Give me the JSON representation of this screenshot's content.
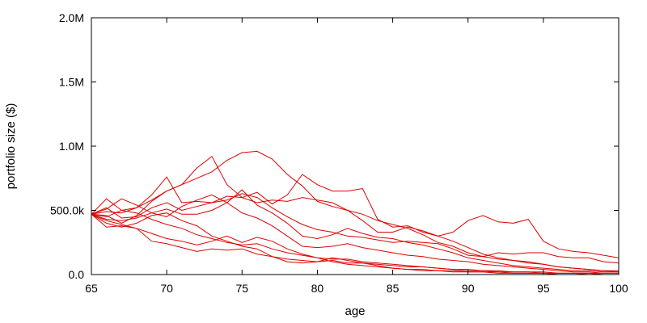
{
  "chart_data": {
    "type": "line",
    "title": "",
    "xlabel": "age",
    "ylabel": "portfolio size ($)",
    "xlim": [
      65,
      100
    ],
    "ylim": [
      0,
      2000000
    ],
    "x_ticks": [
      65,
      70,
      75,
      80,
      85,
      90,
      95,
      100
    ],
    "x_tick_labels": [
      "65",
      "70",
      "75",
      "80",
      "85",
      "90",
      "95",
      "100"
    ],
    "y_ticks": [
      0,
      500000,
      1000000,
      1500000,
      2000000
    ],
    "y_tick_labels": [
      "0.0",
      "500.0k",
      "1.0M",
      "1.5M",
      "2.0M"
    ],
    "grid": false,
    "line_color": "#e00000",
    "series": [
      {
        "x": [
          65,
          66,
          67,
          68,
          69,
          70,
          71,
          72,
          73,
          74,
          75,
          76,
          77,
          78,
          79,
          80,
          81,
          82,
          83,
          84,
          85,
          86,
          87,
          88,
          89,
          90,
          91,
          92,
          93,
          94,
          95,
          96,
          97,
          98,
          99,
          100
        ],
        "values": [
          470000,
          590000,
          500000,
          520000,
          580000,
          650000,
          700000,
          830000,
          920000,
          700000,
          600000,
          640000,
          550000,
          620000,
          780000,
          700000,
          650000,
          650000,
          670000,
          430000,
          370000,
          380000,
          330000,
          300000,
          330000,
          420000,
          460000,
          410000,
          400000,
          430000,
          260000,
          200000,
          180000,
          170000,
          150000,
          130000
        ]
      },
      {
        "x": [
          65,
          66,
          67,
          68,
          69,
          70,
          71,
          72,
          73,
          74,
          75,
          76,
          77,
          78,
          79,
          80,
          81,
          82,
          83,
          84,
          85,
          86,
          87,
          88,
          89,
          90,
          91,
          92,
          93,
          94,
          95,
          96,
          97,
          98,
          99,
          100
        ],
        "values": [
          470000,
          460000,
          400000,
          460000,
          570000,
          650000,
          700000,
          750000,
          800000,
          890000,
          950000,
          960000,
          900000,
          780000,
          690000,
          570000,
          530000,
          500000,
          420000,
          330000,
          330000,
          370000,
          340000,
          300000,
          260000,
          210000,
          160000,
          130000,
          110000,
          90000,
          80000,
          60000,
          50000,
          40000,
          30000,
          30000
        ]
      },
      {
        "x": [
          65,
          66,
          67,
          68,
          69,
          70,
          71,
          72,
          73,
          74,
          75,
          76,
          77,
          78,
          79,
          80,
          81,
          82,
          83,
          84,
          85,
          86,
          87,
          88,
          89,
          90,
          91,
          92,
          93,
          94,
          95,
          96,
          97,
          98,
          99,
          100
        ],
        "values": [
          470000,
          490000,
          480000,
          520000,
          620000,
          760000,
          560000,
          570000,
          560000,
          580000,
          630000,
          600000,
          520000,
          450000,
          390000,
          350000,
          330000,
          300000,
          290000,
          270000,
          250000,
          260000,
          250000,
          240000,
          200000,
          150000,
          140000,
          170000,
          160000,
          170000,
          170000,
          140000,
          130000,
          130000,
          100000,
          90000
        ]
      },
      {
        "x": [
          65,
          66,
          67,
          68,
          69,
          70,
          71,
          72,
          73,
          74,
          75,
          76,
          77,
          78,
          79,
          80,
          81,
          82,
          83,
          84,
          85,
          86,
          87,
          88,
          89,
          90,
          91,
          92,
          93,
          94,
          95,
          96,
          97,
          98,
          99,
          100
        ],
        "values": [
          470000,
          520000,
          440000,
          450000,
          520000,
          560000,
          500000,
          530000,
          560000,
          610000,
          600000,
          560000,
          580000,
          570000,
          600000,
          580000,
          560000,
          500000,
          470000,
          420000,
          390000,
          360000,
          310000,
          250000,
          220000,
          170000,
          140000,
          120000,
          110000,
          100000,
          80000,
          60000,
          50000,
          40000,
          30000,
          20000
        ]
      },
      {
        "x": [
          65,
          66,
          67,
          68,
          69,
          70,
          71,
          72,
          73,
          74,
          75,
          76,
          77,
          78,
          79,
          80,
          81,
          82,
          83,
          84,
          85,
          86,
          87,
          88,
          89,
          90,
          91,
          92,
          93,
          94,
          95,
          96,
          97,
          98,
          99,
          100
        ],
        "values": [
          470000,
          430000,
          420000,
          440000,
          480000,
          510000,
          470000,
          470000,
          500000,
          560000,
          660000,
          540000,
          480000,
          400000,
          300000,
          280000,
          310000,
          360000,
          320000,
          290000,
          280000,
          250000,
          230000,
          200000,
          170000,
          130000,
          110000,
          90000,
          70000,
          60000,
          50000,
          40000,
          30000,
          30000,
          20000,
          20000
        ]
      },
      {
        "x": [
          65,
          66,
          67,
          68,
          69,
          70,
          71,
          72,
          73,
          74,
          75,
          76,
          77,
          78,
          79,
          80,
          81,
          82,
          83,
          84,
          85,
          86,
          87,
          88,
          89,
          90,
          91,
          92,
          93,
          94,
          95,
          96,
          97,
          98,
          99,
          100
        ],
        "values": [
          470000,
          510000,
          590000,
          540000,
          480000,
          450000,
          530000,
          580000,
          620000,
          560000,
          480000,
          440000,
          380000,
          300000,
          220000,
          210000,
          220000,
          240000,
          210000,
          190000,
          170000,
          150000,
          140000,
          120000,
          110000,
          100000,
          80000,
          70000,
          60000,
          50000,
          40000,
          30000,
          20000,
          20000,
          10000,
          10000
        ]
      },
      {
        "x": [
          65,
          66,
          67,
          68,
          69,
          70,
          71,
          72,
          73,
          74,
          75,
          76,
          77,
          78,
          79,
          80,
          81,
          82,
          83,
          84,
          85,
          86,
          87,
          88,
          89,
          90,
          91,
          92,
          93,
          94,
          95,
          96,
          97,
          98,
          99,
          100
        ],
        "values": [
          470000,
          370000,
          380000,
          360000,
          260000,
          240000,
          210000,
          180000,
          200000,
          190000,
          200000,
          160000,
          140000,
          120000,
          110000,
          100000,
          110000,
          90000,
          90000,
          80000,
          70000,
          60000,
          60000,
          50000,
          40000,
          40000,
          30000,
          30000,
          20000,
          20000,
          20000,
          10000,
          10000,
          10000,
          10000,
          10000
        ]
      },
      {
        "x": [
          65,
          66,
          67,
          68,
          69,
          70,
          71,
          72,
          73,
          74,
          75,
          76,
          77,
          78,
          79,
          80,
          81,
          82,
          83,
          84,
          85,
          86,
          87,
          88,
          89,
          90,
          91,
          92,
          93,
          94,
          95,
          96,
          97,
          98,
          99,
          100
        ],
        "values": [
          470000,
          400000,
          370000,
          400000,
          460000,
          480000,
          420000,
          380000,
          300000,
          260000,
          220000,
          200000,
          140000,
          100000,
          90000,
          100000,
          130000,
          110000,
          90000,
          70000,
          50000,
          40000,
          40000,
          30000,
          30000,
          20000,
          20000,
          20000,
          10000,
          10000,
          10000,
          10000,
          10000,
          0,
          0,
          0
        ]
      },
      {
        "x": [
          65,
          66,
          67,
          68,
          69,
          70,
          71,
          72,
          73,
          74,
          75,
          76,
          77,
          78,
          79,
          80,
          81,
          82,
          83,
          84,
          85,
          86,
          87,
          88,
          89,
          90,
          91,
          92,
          93,
          94,
          95,
          96,
          97,
          98,
          99,
          100
        ],
        "values": [
          470000,
          420000,
          390000,
          360000,
          320000,
          280000,
          260000,
          230000,
          260000,
          300000,
          250000,
          290000,
          260000,
          200000,
          160000,
          130000,
          100000,
          80000,
          70000,
          60000,
          50000,
          40000,
          30000,
          30000,
          20000,
          20000,
          20000,
          10000,
          10000,
          10000,
          10000,
          0,
          0,
          0,
          0,
          0
        ]
      },
      {
        "x": [
          65,
          66,
          67,
          68,
          69,
          70,
          71,
          72,
          73,
          74,
          75,
          76,
          77,
          78,
          79,
          80,
          81,
          82,
          83,
          84,
          85,
          86,
          87,
          88,
          89,
          90,
          91,
          92,
          93,
          94,
          95,
          96,
          97,
          98,
          99,
          100
        ],
        "values": [
          470000,
          450000,
          500000,
          480000,
          430000,
          390000,
          360000,
          310000,
          280000,
          250000,
          230000,
          240000,
          200000,
          170000,
          150000,
          130000,
          120000,
          120000,
          100000,
          90000,
          80000,
          70000,
          60000,
          50000,
          40000,
          30000,
          30000,
          20000,
          20000,
          20000,
          10000,
          10000,
          10000,
          10000,
          0,
          0
        ]
      }
    ]
  }
}
